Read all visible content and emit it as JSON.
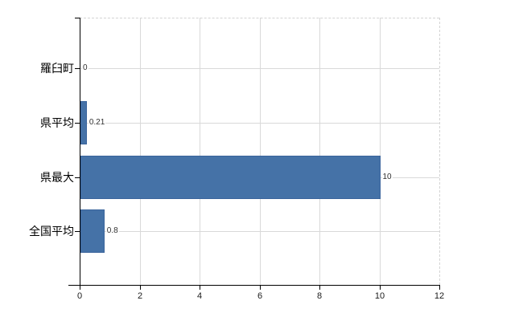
{
  "chart_data": {
    "type": "bar",
    "orientation": "horizontal",
    "title": "",
    "categories": [
      "羅臼町",
      "県平均",
      "県最大",
      "全国平均"
    ],
    "values": [
      0,
      0.21,
      10,
      0.8
    ],
    "value_labels": [
      "0",
      "0.21",
      "10",
      "0.8"
    ],
    "x_ticks": [
      0,
      2,
      4,
      6,
      8,
      10,
      12
    ],
    "xlim": [
      0,
      12
    ],
    "grid": "on",
    "legend": "none",
    "colors": {
      "bar": "#4572a7",
      "bar_border": "#3a649c",
      "gridline": "#d9d9d9",
      "axis": "#000000",
      "value_label": "#303030",
      "category_label": "#000000"
    }
  }
}
